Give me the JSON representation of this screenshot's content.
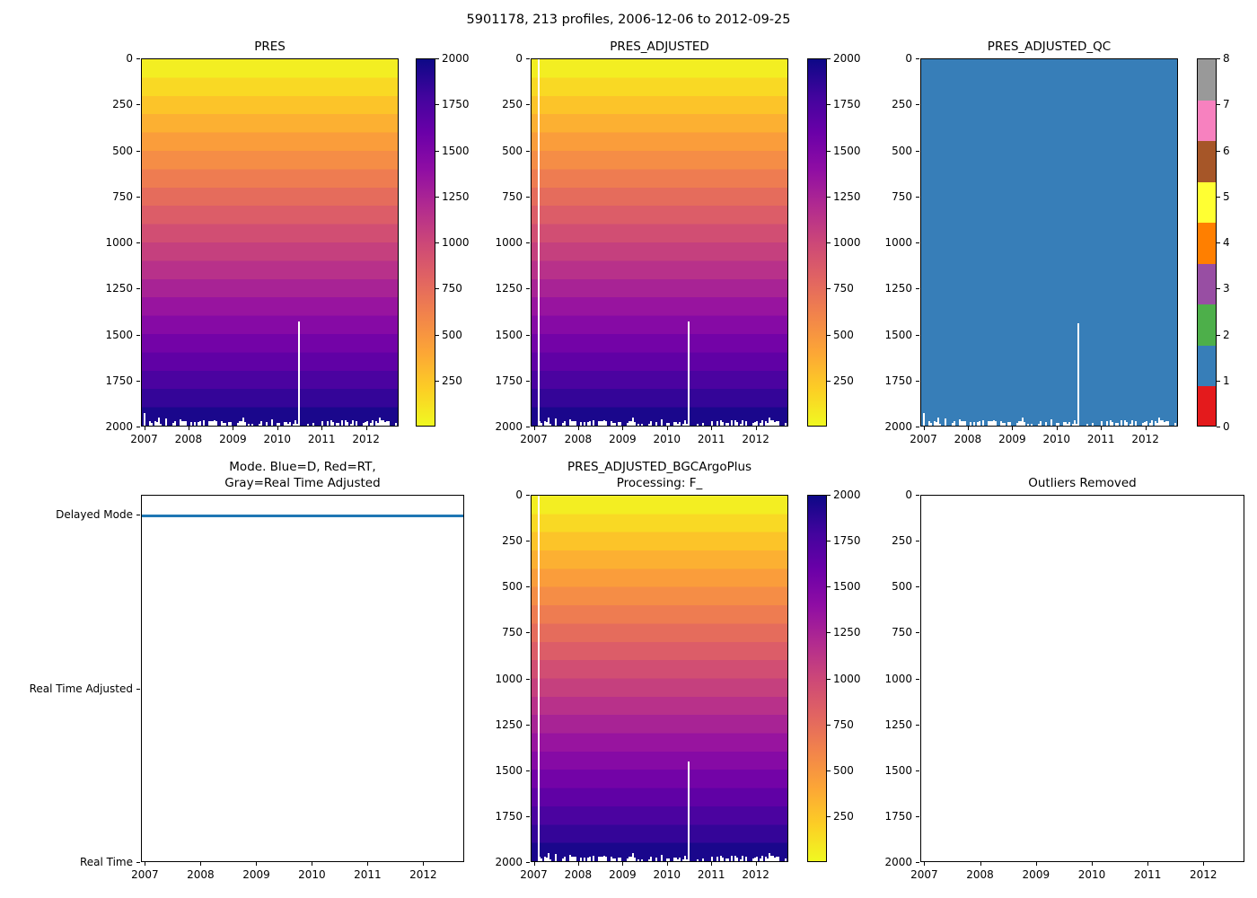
{
  "figure": {
    "title": "5901178, 213 profiles, 2006-12-06 to 2012-09-25"
  },
  "colors": {
    "plasma_anchors": [
      "#0d0887",
      "#41049d",
      "#6a00a8",
      "#8f0da4",
      "#b12a90",
      "#cc4778",
      "#e16462",
      "#f2844b",
      "#fca636",
      "#fcce25",
      "#f0f921"
    ],
    "set1": [
      "#e41a1c",
      "#377eb8",
      "#4daf4a",
      "#984ea3",
      "#ff7f00",
      "#ffff33",
      "#a65628",
      "#f781bf",
      "#999999"
    ],
    "qc_fill": "#377eb8",
    "mode_line": "#1f77b4",
    "missing": "#ffffff"
  },
  "chart_data": [
    {
      "id": "pres",
      "type": "heatmap",
      "title": "PRES",
      "x_range": [
        "2006-12-06",
        "2012-09-25"
      ],
      "x_tick_labels": [
        "2007",
        "2008",
        "2009",
        "2010",
        "2011",
        "2012"
      ],
      "y_range": [
        0,
        2000
      ],
      "y_tick_labels": [
        "0",
        "250",
        "500",
        "750",
        "1000",
        "1250",
        "1500",
        "1750",
        "2000"
      ],
      "values_note": "213 profiles; pressure equals depth, 0 dbar at surface (yellow) to 2000 dbar at bottom (dark indigo)",
      "colormap": "plasma_r",
      "colorbar_tick_labels": [
        "2000",
        "1750",
        "1500",
        "1250",
        "1000",
        "750",
        "500",
        "250"
      ],
      "colorbar_range": [
        0,
        2000
      ],
      "missing": {
        "mid_gap_x_frac": 0.61,
        "mid_gap_from_depth_frac": 0.712,
        "left_spike": true,
        "bottom_jitter": true
      }
    },
    {
      "id": "pres_adjusted",
      "type": "heatmap",
      "title": "PRES_ADJUSTED",
      "x_range": [
        "2006-12-06",
        "2012-09-25"
      ],
      "x_tick_labels": [
        "2007",
        "2008",
        "2009",
        "2010",
        "2011",
        "2012"
      ],
      "y_range": [
        0,
        2000
      ],
      "y_tick_labels": [
        "0",
        "250",
        "500",
        "750",
        "1000",
        "1250",
        "1500",
        "1750",
        "2000"
      ],
      "values_note": "same gradient as PRES; first profile missing (full-height white gap near left edge)",
      "colormap": "plasma_r",
      "colorbar_tick_labels": [
        "2000",
        "1750",
        "1500",
        "1250",
        "1000",
        "750",
        "500",
        "250"
      ],
      "colorbar_range": [
        0,
        2000
      ],
      "missing": {
        "left_gap_x_frac": 0.028,
        "mid_gap_x_frac": 0.61,
        "mid_gap_from_depth_frac": 0.712,
        "bottom_jitter": true
      }
    },
    {
      "id": "pres_adjusted_qc",
      "type": "heatmap",
      "title": "PRES_ADJUSTED_QC",
      "x_range": [
        "2006-12-06",
        "2012-09-25"
      ],
      "x_tick_labels": [
        "2007",
        "2008",
        "2009",
        "2010",
        "2011",
        "2012"
      ],
      "y_range": [
        0,
        2000
      ],
      "y_tick_labels": [
        "0",
        "250",
        "500",
        "750",
        "1000",
        "1250",
        "1500",
        "1750",
        "2000"
      ],
      "values_note": "constant QC flag = 1 (good data, solid blue) for all profiles",
      "constant_value": 1,
      "colormap": "Set1 (discrete, 9 classes)",
      "colorbar_tick_labels": [
        "8",
        "7",
        "6",
        "5",
        "4",
        "3",
        "2",
        "1",
        "0"
      ],
      "colorbar_range": [
        0,
        8
      ],
      "missing": {
        "mid_gap_x_frac": 0.61,
        "mid_gap_from_depth_frac": 0.717,
        "left_spike": true,
        "bottom_jitter": true
      }
    },
    {
      "id": "mode",
      "type": "line",
      "title_lines": [
        "Mode. Blue=D, Red=RT,",
        "Gray=Real Time Adjusted"
      ],
      "x_range": [
        "2006-12-06",
        "2012-09-25"
      ],
      "x_tick_labels": [
        "2007",
        "2008",
        "2009",
        "2010",
        "2011",
        "2012"
      ],
      "y_category_labels": [
        "Delayed Mode",
        "Real Time Adjusted",
        "Real Time"
      ],
      "series": [
        {
          "name": "processing mode",
          "value": "Delayed Mode",
          "constant": true,
          "color_key": "mode_line"
        }
      ],
      "values_note": "blue step line constant at Delayed Mode across entire record"
    },
    {
      "id": "pres_adjusted_bgcargoplus",
      "type": "heatmap",
      "title_lines": [
        "PRES_ADJUSTED_BGCArgoPlus",
        "Processing: F_"
      ],
      "x_range": [
        "2006-12-06",
        "2012-09-25"
      ],
      "x_tick_labels": [
        "2007",
        "2008",
        "2009",
        "2010",
        "2011",
        "2012"
      ],
      "y_range": [
        0,
        2000
      ],
      "y_tick_labels": [
        "0",
        "250",
        "500",
        "750",
        "1000",
        "1250",
        "1500",
        "1750",
        "2000"
      ],
      "values_note": "same pressure field as PRES_ADJUSTED",
      "colormap": "plasma_r",
      "colorbar_tick_labels": [
        "2000",
        "1750",
        "1500",
        "1250",
        "1000",
        "750",
        "500",
        "250"
      ],
      "colorbar_range": [
        0,
        2000
      ],
      "missing": {
        "left_gap_x_frac": 0.028,
        "mid_gap_x_frac": 0.61,
        "mid_gap_from_depth_frac": 0.724,
        "bottom_jitter": true
      }
    },
    {
      "id": "outliers_removed",
      "type": "empty",
      "title": "Outliers Removed",
      "x_range": [
        "2006-12-06",
        "2012-09-25"
      ],
      "x_tick_labels": [
        "2007",
        "2008",
        "2009",
        "2010",
        "2011",
        "2012"
      ],
      "y_range": [
        0,
        2000
      ],
      "y_tick_labels": [
        "0",
        "250",
        "500",
        "750",
        "1000",
        "1250",
        "1500",
        "1750",
        "2000"
      ],
      "values_note": "no outliers plotted — empty axes"
    }
  ]
}
